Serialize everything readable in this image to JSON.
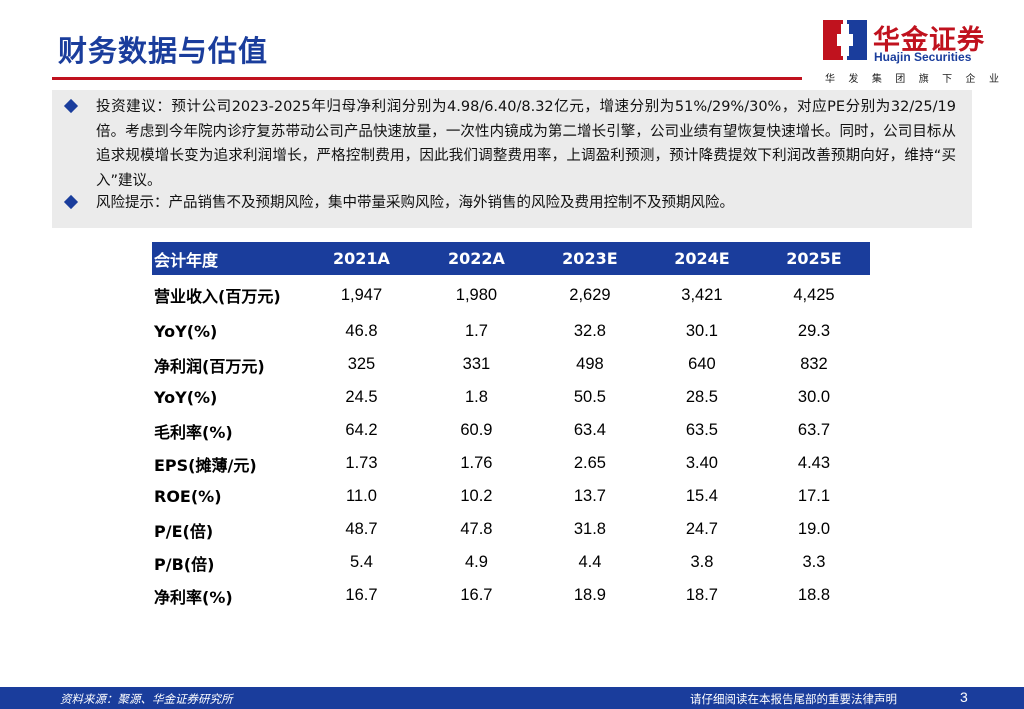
{
  "header": {
    "title": "财务数据与估值",
    "logo": {
      "cn": "华金证券",
      "en": "Huajin Securities",
      "tagline": [
        "华",
        "发",
        "集",
        "团",
        "旗",
        "下",
        "企",
        "业"
      ]
    }
  },
  "advice": {
    "investment": "投资建议：预计公司2023-2025年归母净利润分别为4.98/6.40/8.32亿元，增速分别为51%/29%/30%，对应PE分别为32/25/19倍。考虑到今年院内诊疗复苏带动公司产品快速放量，一次性内镜成为第二增长引擎，公司业绩有望恢复快速增长。同时，公司目标从追求规模增长变为追求利润增长，严格控制费用，因此我们调整费用率，上调盈利预测，预计降费提效下利润改善预期向好，维持“买入”建议。",
    "risk": "风险提示：产品销售不及预期风险，集中带量采购风险，海外销售的风险及费用控制不及预期风险。"
  },
  "table": {
    "header_label": "会计年度",
    "years": [
      "2021A",
      "2022A",
      "2023E",
      "2024E",
      "2025E"
    ],
    "rows": [
      {
        "label": "营业收入(百万元)",
        "values": [
          "1,947",
          "1,980",
          "2,629",
          "3,421",
          "4,425"
        ]
      },
      {
        "label": "YoY(%)",
        "values": [
          "46.8",
          "1.7",
          "32.8",
          "30.1",
          "29.3"
        ]
      },
      {
        "label": "净利润(百万元)",
        "values": [
          "325",
          "331",
          "498",
          "640",
          "832"
        ]
      },
      {
        "label": "YoY(%)",
        "values": [
          "24.5",
          "1.8",
          "50.5",
          "28.5",
          "30.0"
        ]
      },
      {
        "label": "毛利率(%)",
        "values": [
          "64.2",
          "60.9",
          "63.4",
          "63.5",
          "63.7"
        ]
      },
      {
        "label": "EPS(摊薄/元)",
        "values": [
          "1.73",
          "1.76",
          "2.65",
          "3.40",
          "4.43"
        ]
      },
      {
        "label": "ROE(%)",
        "values": [
          "11.0",
          "10.2",
          "13.7",
          "15.4",
          "17.1"
        ]
      },
      {
        "label": "P/E(倍)",
        "values": [
          "48.7",
          "47.8",
          "31.8",
          "24.7",
          "19.0"
        ]
      },
      {
        "label": "P/B(倍)",
        "values": [
          "5.4",
          "4.9",
          "4.4",
          "3.8",
          "3.3"
        ]
      },
      {
        "label": "净利率(%)",
        "values": [
          "16.7",
          "16.7",
          "18.9",
          "18.7",
          "18.8"
        ]
      }
    ]
  },
  "footer": {
    "source": "资料来源：聚源、华金证券研究所",
    "notice": "请仔细阅读在本报告尾部的重要法律声明",
    "page": "3"
  },
  "colors": {
    "brand_blue": "#1a3d9c",
    "brand_red": "#c0121e",
    "box_gray": "#ebebeb"
  }
}
